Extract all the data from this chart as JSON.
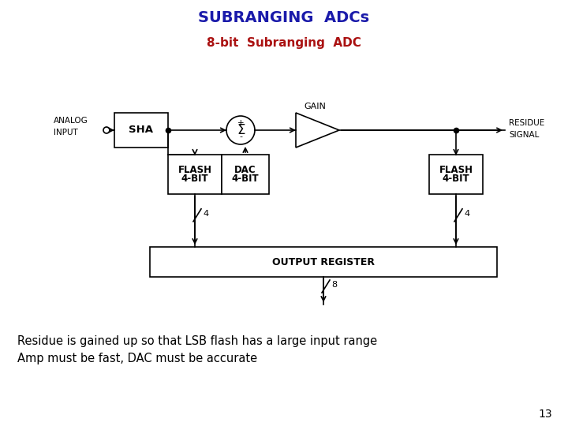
{
  "title": "SUBRANGING  ADCs",
  "title_color": "#1a1aaa",
  "subtitle": "8-bit  Subranging  ADC",
  "subtitle_color": "#aa1111",
  "body_text_line1": "Residue is gained up so that LSB flash has a large input range",
  "body_text_line2": "Amp must be fast, DAC must be accurate",
  "body_text_color": "#000000",
  "page_number": "13",
  "bg_color": "#FFFFFF",
  "box_color": "#000000",
  "line_color": "#000000",
  "analog_input_label": [
    "ANALOG",
    "INPUT"
  ],
  "gain_label": "GAIN",
  "residue_label": [
    "RESIDUE",
    "SIGNAL"
  ],
  "flash1_label": [
    "4-BIT",
    "FLASH"
  ],
  "dac_label": [
    "4-BIT",
    "DAC"
  ],
  "flash2_label": [
    "4-BIT",
    "FLASH"
  ],
  "outreg_label": "OUTPUT REGISTER",
  "sha_label": "SHA"
}
